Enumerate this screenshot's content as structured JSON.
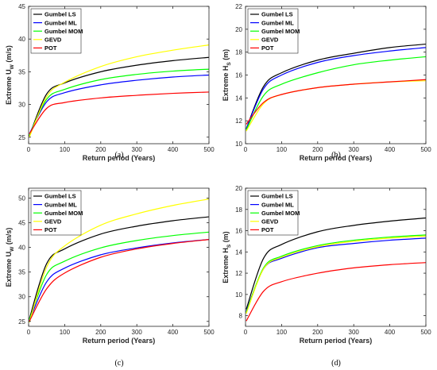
{
  "figure": {
    "panels": [
      {
        "id": "a",
        "caption": "(a)"
      },
      {
        "id": "b",
        "caption": "(b)"
      },
      {
        "id": "c",
        "caption": "(c)"
      },
      {
        "id": "d",
        "caption": "(d)"
      }
    ]
  },
  "chart_data": [
    {
      "type": "line",
      "panel": "(a)",
      "xlabel": "Return period (Years)",
      "ylabel_main": "Extreme U",
      "ylabel_sub": "W",
      "ylabel_tail": " (m/s)",
      "xlim": [
        0,
        500
      ],
      "ylim": [
        24,
        45
      ],
      "xticks": [
        0,
        100,
        200,
        300,
        400,
        500
      ],
      "yticks": [
        25,
        30,
        35,
        40,
        45
      ],
      "legend_position": "top-left",
      "grid": false,
      "series": [
        {
          "name": "Gumbel LS",
          "color": "#000000",
          "x": [
            2,
            50,
            100,
            200,
            300,
            400,
            500
          ],
          "y": [
            25.2,
            31.6,
            33.3,
            35.0,
            36.0,
            36.7,
            37.2
          ]
        },
        {
          "name": "Gumbel ML",
          "color": "#0000ff",
          "x": [
            2,
            50,
            100,
            200,
            300,
            400,
            500
          ],
          "y": [
            25.5,
            30.4,
            31.8,
            33.0,
            33.7,
            34.2,
            34.5
          ]
        },
        {
          "name": "Gumbel MOM",
          "color": "#00ff00",
          "x": [
            2,
            50,
            100,
            200,
            300,
            400,
            500
          ],
          "y": [
            25.3,
            30.8,
            32.3,
            33.8,
            34.6,
            35.1,
            35.4
          ]
        },
        {
          "name": "GEVD",
          "color": "#ffff00",
          "x": [
            2,
            50,
            100,
            200,
            300,
            400,
            500
          ],
          "y": [
            25.0,
            31.2,
            33.4,
            35.8,
            37.3,
            38.3,
            39.1
          ]
        },
        {
          "name": "POT",
          "color": "#ff0000",
          "x": [
            2,
            50,
            100,
            200,
            300,
            400,
            500
          ],
          "y": [
            25.5,
            29.4,
            30.3,
            31.0,
            31.4,
            31.7,
            31.9
          ]
        }
      ]
    },
    {
      "type": "line",
      "panel": "(b)",
      "xlabel": "Return period (Years)",
      "ylabel_main": "Extreme H",
      "ylabel_sub": "S",
      "ylabel_tail": " (m)",
      "xlim": [
        0,
        500
      ],
      "ylim": [
        10,
        22
      ],
      "xticks": [
        0,
        100,
        200,
        300,
        400,
        500
      ],
      "yticks": [
        10,
        12,
        14,
        16,
        18,
        20,
        22
      ],
      "legend_position": "top-left",
      "grid": false,
      "series": [
        {
          "name": "Gumbel LS",
          "color": "#000000",
          "x": [
            2,
            50,
            100,
            200,
            300,
            400,
            500
          ],
          "y": [
            11.3,
            15.0,
            16.2,
            17.3,
            17.9,
            18.4,
            18.7
          ]
        },
        {
          "name": "Gumbel ML",
          "color": "#0000ff",
          "x": [
            2,
            50,
            100,
            200,
            300,
            400,
            500
          ],
          "y": [
            11.3,
            14.8,
            16.0,
            17.1,
            17.7,
            18.1,
            18.4
          ]
        },
        {
          "name": "Gumbel MOM",
          "color": "#00ff00",
          "x": [
            2,
            50,
            100,
            200,
            300,
            400,
            500
          ],
          "y": [
            11.2,
            14.2,
            15.2,
            16.2,
            16.9,
            17.3,
            17.6
          ]
        },
        {
          "name": "GEVD",
          "color": "#ffff00",
          "x": [
            2,
            50,
            100,
            200,
            300,
            400,
            500
          ],
          "y": [
            11.1,
            13.5,
            14.3,
            14.9,
            15.2,
            15.4,
            15.5
          ]
        },
        {
          "name": "POT",
          "color": "#ff0000",
          "x": [
            2,
            50,
            100,
            200,
            300,
            400,
            500
          ],
          "y": [
            11.7,
            13.6,
            14.3,
            14.9,
            15.2,
            15.4,
            15.6
          ]
        }
      ]
    },
    {
      "type": "line",
      "panel": "(c)",
      "xlabel": "Return period (Years)",
      "ylabel_main": "Extreme U",
      "ylabel_sub": "W",
      "ylabel_tail": " (m/s)",
      "xlim": [
        0,
        500
      ],
      "ylim": [
        24,
        52
      ],
      "xticks": [
        0,
        100,
        200,
        300,
        400,
        500
      ],
      "yticks": [
        25,
        30,
        35,
        40,
        45,
        50
      ],
      "legend_position": "top-left",
      "grid": false,
      "series": [
        {
          "name": "Gumbel LS",
          "color": "#000000",
          "x": [
            2,
            50,
            100,
            200,
            300,
            400,
            500
          ],
          "y": [
            25.5,
            36.7,
            39.7,
            42.7,
            44.3,
            45.4,
            46.2
          ]
        },
        {
          "name": "Gumbel ML",
          "color": "#0000ff",
          "x": [
            2,
            50,
            100,
            200,
            300,
            400,
            500
          ],
          "y": [
            25.2,
            33.0,
            35.8,
            38.5,
            39.9,
            40.9,
            41.6
          ]
        },
        {
          "name": "Gumbel MOM",
          "color": "#00ff00",
          "x": [
            2,
            50,
            100,
            200,
            300,
            400,
            500
          ],
          "y": [
            25.3,
            34.5,
            37.2,
            39.9,
            41.4,
            42.4,
            43.1
          ]
        },
        {
          "name": "GEVD",
          "color": "#ffff00",
          "x": [
            2,
            50,
            100,
            200,
            300,
            400,
            500
          ],
          "y": [
            24.8,
            36.0,
            40.3,
            44.5,
            46.8,
            48.5,
            49.8
          ]
        },
        {
          "name": "POT",
          "color": "#ff0000",
          "x": [
            2,
            50,
            100,
            200,
            300,
            400,
            500
          ],
          "y": [
            25.0,
            31.6,
            34.8,
            38.0,
            39.7,
            40.8,
            41.6
          ]
        }
      ]
    },
    {
      "type": "line",
      "panel": "(d)",
      "xlabel": "Return period (Years)",
      "ylabel_main": "Extreme H",
      "ylabel_sub": "S",
      "ylabel_tail": " (m)",
      "xlim": [
        0,
        500
      ],
      "ylim": [
        7,
        20
      ],
      "xticks": [
        0,
        100,
        200,
        300,
        400,
        500
      ],
      "yticks": [
        8,
        10,
        12,
        14,
        16,
        18,
        20
      ],
      "legend_position": "top-left",
      "grid": false,
      "series": [
        {
          "name": "Gumbel LS",
          "color": "#000000",
          "x": [
            2,
            50,
            100,
            200,
            300,
            400,
            500
          ],
          "y": [
            8.6,
            13.4,
            14.7,
            15.9,
            16.5,
            16.9,
            17.2
          ]
        },
        {
          "name": "Gumbel ML",
          "color": "#0000ff",
          "x": [
            2,
            50,
            100,
            200,
            300,
            400,
            500
          ],
          "y": [
            8.4,
            12.4,
            13.4,
            14.4,
            14.8,
            15.1,
            15.3
          ]
        },
        {
          "name": "Gumbel MOM",
          "color": "#00ff00",
          "x": [
            2,
            50,
            100,
            200,
            300,
            400,
            500
          ],
          "y": [
            8.3,
            12.5,
            13.6,
            14.6,
            15.1,
            15.4,
            15.6
          ]
        },
        {
          "name": "GEVD",
          "color": "#ffff00",
          "x": [
            2,
            50,
            100,
            200,
            300,
            400,
            500
          ],
          "y": [
            8.2,
            12.4,
            13.5,
            14.5,
            15.0,
            15.3,
            15.5
          ]
        },
        {
          "name": "POT",
          "color": "#ff0000",
          "x": [
            2,
            50,
            100,
            200,
            300,
            400,
            500
          ],
          "y": [
            7.5,
            10.3,
            11.2,
            12.0,
            12.5,
            12.8,
            13.0
          ]
        }
      ]
    }
  ]
}
